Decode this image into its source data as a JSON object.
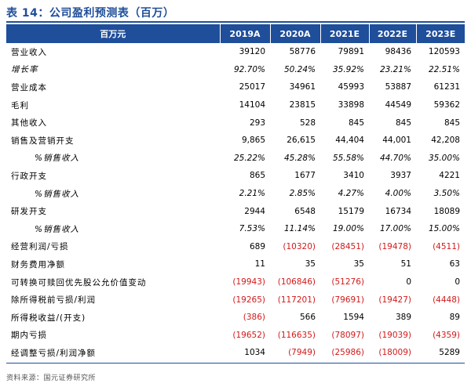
{
  "title": "表 14：公司盈利预测表（百万）",
  "header": {
    "label": "百万元",
    "years": [
      "2019A",
      "2020A",
      "2021E",
      "2022E",
      "2023E"
    ]
  },
  "rows": [
    {
      "label": "营业收入",
      "values": [
        "39120",
        "58776",
        "79891",
        "98436",
        "120593"
      ]
    },
    {
      "label": "增长率",
      "italic": true,
      "values": [
        "92.70%",
        "50.24%",
        "35.92%",
        "23.21%",
        "22.51%"
      ]
    },
    {
      "label": "营业成本",
      "values": [
        "25017",
        "34961",
        "45993",
        "53887",
        "61231"
      ]
    },
    {
      "label": "毛利",
      "values": [
        "14104",
        "23815",
        "33898",
        "44549",
        "59362"
      ]
    },
    {
      "label": "其他收入",
      "values": [
        "293",
        "528",
        "845",
        "845",
        "845"
      ]
    },
    {
      "label": "销售及营销开支",
      "values": [
        "9,865",
        "26,615",
        "44,404",
        "44,001",
        "42,208"
      ]
    },
    {
      "label": "%销售收入",
      "indent": true,
      "italic": true,
      "values": [
        "25.22%",
        "45.28%",
        "55.58%",
        "44.70%",
        "35.00%"
      ]
    },
    {
      "label": "行政开支",
      "values": [
        "865",
        "1677",
        "3410",
        "3937",
        "4221"
      ]
    },
    {
      "label": "%销售收入",
      "indent": true,
      "italic": true,
      "values": [
        "2.21%",
        "2.85%",
        "4.27%",
        "4.00%",
        "3.50%"
      ]
    },
    {
      "label": "研发开支",
      "values": [
        "2944",
        "6548",
        "15179",
        "16734",
        "18089"
      ]
    },
    {
      "label": "%销售收入",
      "indent": true,
      "italic": true,
      "values": [
        "7.53%",
        "11.14%",
        "19.00%",
        "17.00%",
        "15.00%"
      ]
    },
    {
      "label": "经营利润/亏损",
      "values": [
        "689",
        "(10320)",
        "(28451)",
        "(19478)",
        "(4511)"
      ]
    },
    {
      "label": "财务费用净额",
      "values": [
        "11",
        "35",
        "35",
        "51",
        "63"
      ]
    },
    {
      "label": "可转换可赎回优先股公允价值变动",
      "values": [
        "(19943)",
        "(106846)",
        "(51276)",
        "0",
        "0"
      ]
    },
    {
      "label": "除所得税前亏损/利润",
      "values": [
        "(19265)",
        "(117201)",
        "(79691)",
        "(19427)",
        "(4448)"
      ]
    },
    {
      "label": "所得税收益/(开支)",
      "values": [
        "(386)",
        "566",
        "1594",
        "389",
        "89"
      ]
    },
    {
      "label": "期内亏损",
      "values": [
        "(19652)",
        "(116635)",
        "(78097)",
        "(19039)",
        "(4359)"
      ]
    },
    {
      "label": "经调整亏损/利润净额",
      "values": [
        "1034",
        "(7949)",
        "(25986)",
        "(18009)",
        "5289"
      ]
    }
  ],
  "source": "资料来源：国元证券研究所",
  "colors": {
    "accent": "#1f4e9a",
    "negative": "#d11a1a"
  }
}
